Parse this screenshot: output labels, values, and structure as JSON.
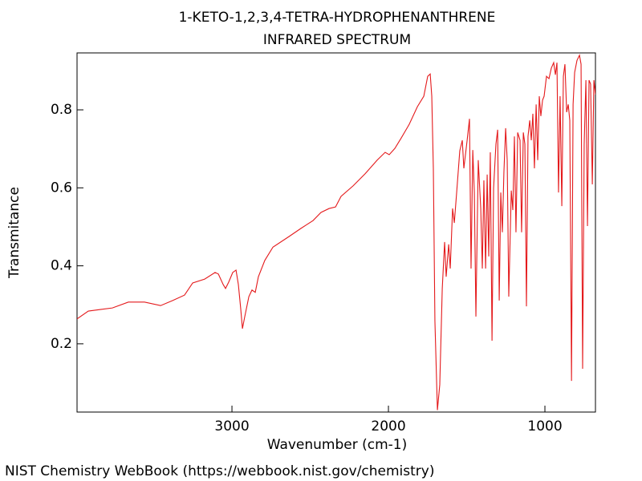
{
  "chart_data": {
    "type": "line",
    "title": "1-KETO-1,2,3,4-TETRA-HYDROPHENANTHRENE",
    "subtitle": "INFRARED SPECTRUM",
    "x_label": "Wavenumber (cm-1)",
    "y_label": "Transmitance",
    "source": "NIST Chemistry WebBook (https://webbook.nist.gov/chemistry)",
    "color": "#e41a1c",
    "xlim": [
      3990,
      677
    ],
    "ylim": [
      0.025,
      0.946
    ],
    "xticks": [
      3000,
      2000,
      1000
    ],
    "yticks": [
      0.2,
      0.4,
      0.6,
      0.8
    ],
    "grid": false,
    "x": [
      3990,
      3918,
      3841,
      3764,
      3662,
      3559,
      3456,
      3379,
      3303,
      3251,
      3174,
      3108,
      3087,
      3056,
      3041,
      3021,
      2995,
      2974,
      2959,
      2944,
      2933,
      2918,
      2892,
      2872,
      2851,
      2831,
      2790,
      2738,
      2636,
      2559,
      2482,
      2431,
      2379,
      2338,
      2303,
      2226,
      2149,
      2072,
      2021,
      1995,
      1959,
      1918,
      1867,
      1815,
      1774,
      1749,
      1733,
      1723,
      1713,
      1703,
      1687,
      1672,
      1656,
      1641,
      1631,
      1615,
      1605,
      1590,
      1579,
      1564,
      1544,
      1528,
      1518,
      1497,
      1482,
      1472,
      1461,
      1451,
      1441,
      1426,
      1410,
      1400,
      1390,
      1379,
      1369,
      1359,
      1349,
      1338,
      1328,
      1313,
      1302,
      1292,
      1282,
      1272,
      1262,
      1251,
      1241,
      1231,
      1215,
      1205,
      1195,
      1185,
      1174,
      1159,
      1149,
      1138,
      1128,
      1118,
      1108,
      1097,
      1087,
      1077,
      1067,
      1056,
      1046,
      1036,
      1026,
      1015,
      1005,
      990,
      974,
      959,
      944,
      933,
      923,
      913,
      903,
      892,
      882,
      872,
      861,
      851,
      841,
      830,
      820,
      810,
      795,
      779,
      769,
      759,
      749,
      738,
      728,
      718,
      708,
      697,
      687,
      677
    ],
    "values": [
      0.264,
      0.284,
      0.288,
      0.292,
      0.307,
      0.307,
      0.298,
      0.311,
      0.325,
      0.356,
      0.366,
      0.383,
      0.379,
      0.352,
      0.342,
      0.358,
      0.383,
      0.389,
      0.352,
      0.29,
      0.239,
      0.27,
      0.321,
      0.338,
      0.332,
      0.372,
      0.414,
      0.448,
      0.475,
      0.496,
      0.516,
      0.537,
      0.547,
      0.551,
      0.578,
      0.605,
      0.636,
      0.671,
      0.691,
      0.685,
      0.701,
      0.728,
      0.763,
      0.808,
      0.835,
      0.886,
      0.892,
      0.835,
      0.65,
      0.259,
      0.03,
      0.095,
      0.342,
      0.461,
      0.372,
      0.455,
      0.393,
      0.547,
      0.51,
      0.588,
      0.695,
      0.722,
      0.65,
      0.722,
      0.777,
      0.393,
      0.697,
      0.588,
      0.27,
      0.671,
      0.547,
      0.393,
      0.619,
      0.393,
      0.634,
      0.424,
      0.691,
      0.208,
      0.599,
      0.712,
      0.749,
      0.311,
      0.588,
      0.486,
      0.64,
      0.753,
      0.671,
      0.321,
      0.593,
      0.543,
      0.732,
      0.486,
      0.742,
      0.722,
      0.486,
      0.742,
      0.712,
      0.296,
      0.732,
      0.773,
      0.722,
      0.79,
      0.65,
      0.814,
      0.671,
      0.835,
      0.784,
      0.825,
      0.835,
      0.886,
      0.88,
      0.907,
      0.921,
      0.89,
      0.921,
      0.588,
      0.835,
      0.553,
      0.886,
      0.917,
      0.794,
      0.814,
      0.773,
      0.105,
      0.814,
      0.896,
      0.927,
      0.94,
      0.917,
      0.136,
      0.712,
      0.876,
      0.502,
      0.876,
      0.866,
      0.609,
      0.876,
      0.839
    ]
  }
}
